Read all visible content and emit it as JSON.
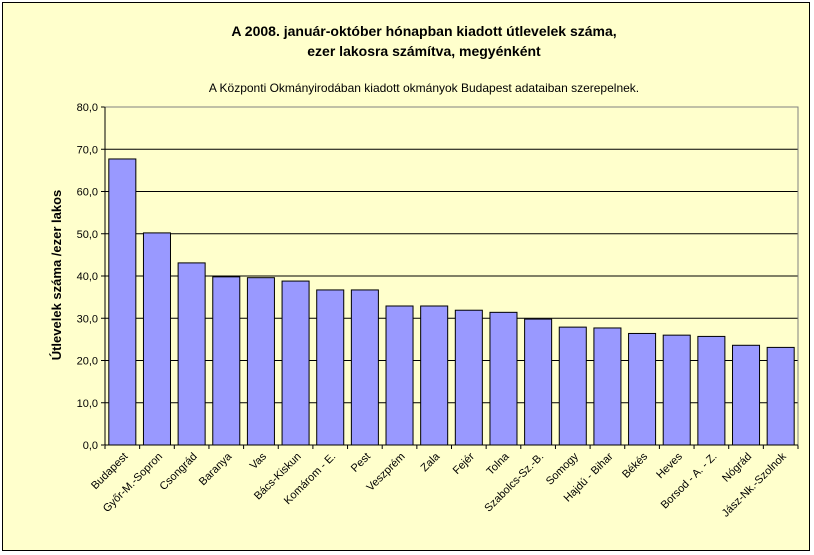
{
  "chart_data": {
    "type": "bar",
    "title_line1": "A 2008. január-október hónapban kiadott útlevelek száma,",
    "title_line2": "ezer lakosra számítva, megyénként",
    "subtitle": "A Központi Okmányirodában kiadott okmányok Budapest adataiban szerepelnek.",
    "xlabel": "",
    "ylabel": "Útlevelek száma /ezer lakos",
    "ylim": [
      0,
      80
    ],
    "ytick_step": 10,
    "ytick_labels": [
      "0,0",
      "10,0",
      "20,0",
      "30,0",
      "40,0",
      "50,0",
      "60,0",
      "70,0",
      "80,0"
    ],
    "grid": true,
    "legend": "none",
    "categories": [
      "Budapest",
      "Győr-M.-Sopron",
      "Csongrád",
      "Baranya",
      "Vas",
      "Bács-Kiskun",
      "Komárom - E.",
      "Pest",
      "Veszprém",
      "Zala",
      "Fejér",
      "Tolna",
      "Szabolcs-Sz.-B.",
      "Somogy",
      "Hajdú - Bihar",
      "Békés",
      "Heves",
      "Borsod - A. - Z.",
      "Nógrád",
      "Jász-Nk.-Szolnok"
    ],
    "values": [
      67.7,
      50.2,
      43.1,
      39.8,
      39.6,
      38.8,
      36.7,
      36.7,
      32.9,
      32.9,
      31.9,
      31.4,
      29.8,
      27.9,
      27.7,
      26.4,
      26.0,
      25.7,
      23.6,
      23.1
    ],
    "colors": {
      "bar_fill": "#9999ff",
      "bar_stroke": "#000000",
      "plot_background": "#ffffcc",
      "gridline": "#000000",
      "frame_background": "#ffffcc"
    }
  }
}
